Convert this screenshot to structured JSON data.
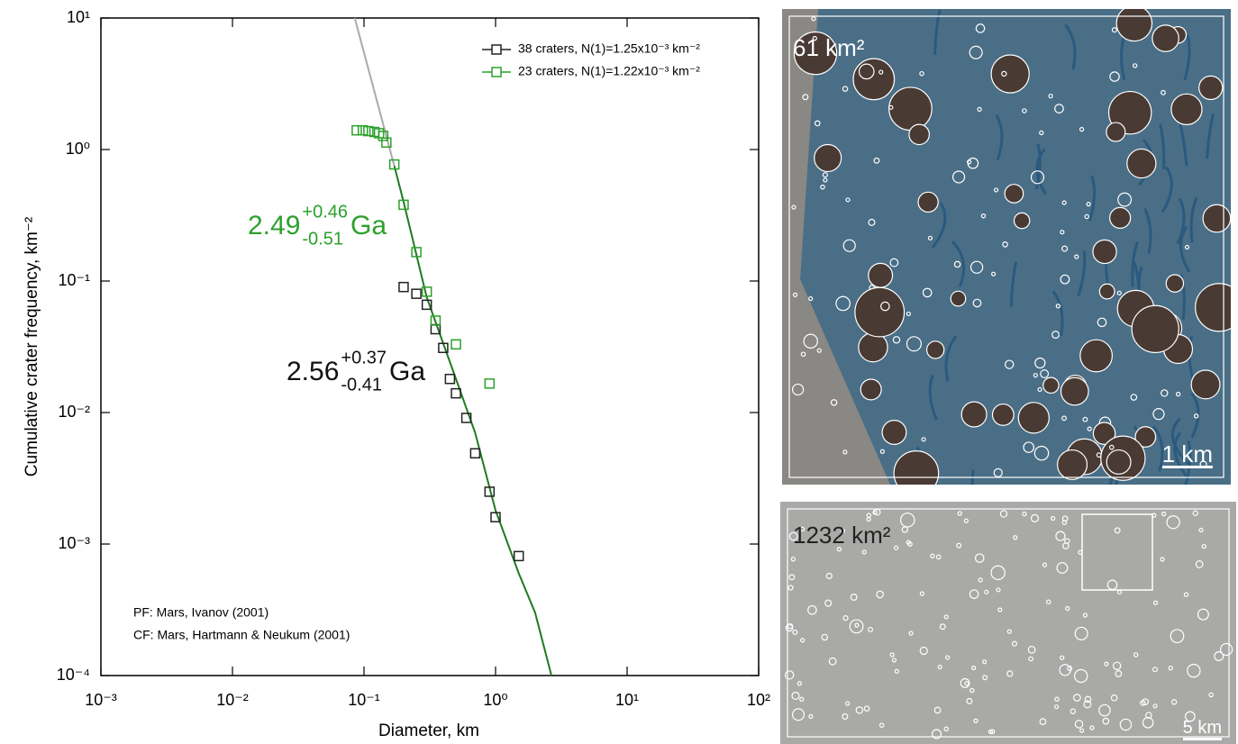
{
  "chart_data": {
    "type": "scatter",
    "xlabel": "Diameter, km",
    "ylabel": "Cumulative crater frequency, km⁻²",
    "log_x": true,
    "log_y": true,
    "xlim": [
      0.001,
      100
    ],
    "ylim": [
      0.0001,
      10
    ],
    "xticks": [
      {
        "value": 0.001,
        "label": "10⁻³"
      },
      {
        "value": 0.01,
        "label": "10⁻²"
      },
      {
        "value": 0.1,
        "label": "10⁻¹"
      },
      {
        "value": 1,
        "label": "10⁰"
      },
      {
        "value": 10,
        "label": "10¹"
      },
      {
        "value": 100,
        "label": "10²"
      }
    ],
    "yticks": [
      {
        "value": 0.0001,
        "label": "10⁻⁴"
      },
      {
        "value": 0.001,
        "label": "10⁻³"
      },
      {
        "value": 0.01,
        "label": "10⁻²"
      },
      {
        "value": 0.1,
        "label": "10⁻¹"
      },
      {
        "value": 1,
        "label": "10⁰"
      },
      {
        "value": 10,
        "label": "10¹"
      }
    ],
    "legend": "upper right",
    "series": [
      {
        "name": "38 craters, N(1)=1.25x10⁻³ km⁻²",
        "color": "#222222",
        "x": [
          0.2,
          0.25,
          0.3,
          0.35,
          0.4,
          0.45,
          0.5,
          0.6,
          0.7,
          0.9,
          1.0,
          1.5
        ],
        "values": [
          0.09,
          0.08,
          0.066,
          0.043,
          0.031,
          0.018,
          0.014,
          0.0091,
          0.0049,
          0.0025,
          0.0016,
          0.00081
        ]
      },
      {
        "name": "23 craters, N(1)=1.22x10⁻³ km⁻²",
        "color": "#2ca02c",
        "x": [
          0.088,
          0.098,
          0.108,
          0.12,
          0.13,
          0.14,
          0.148,
          0.17,
          0.2,
          0.25,
          0.3,
          0.35,
          0.5,
          0.9
        ],
        "values": [
          1.4,
          1.4,
          1.38,
          1.36,
          1.33,
          1.27,
          1.13,
          0.77,
          0.38,
          0.166,
          0.083,
          0.05,
          0.033,
          0.0166
        ]
      }
    ],
    "curves": [
      {
        "color": "#aaaaaa",
        "x": [
          0.085,
          0.17
        ],
        "values": [
          10,
          0.75
        ]
      },
      {
        "color": "#1f7a1f",
        "x": [
          0.17,
          0.2,
          0.3,
          0.5,
          0.7,
          1.0,
          1.5,
          2.0,
          2.66
        ],
        "values": [
          0.75,
          0.4,
          0.075,
          0.018,
          0.007,
          0.0018,
          0.0006,
          0.0003,
          0.0001
        ]
      }
    ],
    "annotations": [
      {
        "value": "2.49",
        "plus": "+0.46",
        "minus": "-0.51",
        "unit": "Ga",
        "color": "#2ca02c"
      },
      {
        "value": "2.56",
        "plus": "+0.37",
        "minus": "-0.41",
        "unit": "Ga",
        "color": "#111111"
      }
    ],
    "notes": [
      "PF: Mars, Ivanov (2001)",
      "CF: Mars, Hartmann & Neukum (2001)"
    ]
  },
  "panels": [
    {
      "area": "61 km²",
      "scale": "1 km"
    },
    {
      "area": "1232 km²",
      "scale": "5 km"
    }
  ]
}
